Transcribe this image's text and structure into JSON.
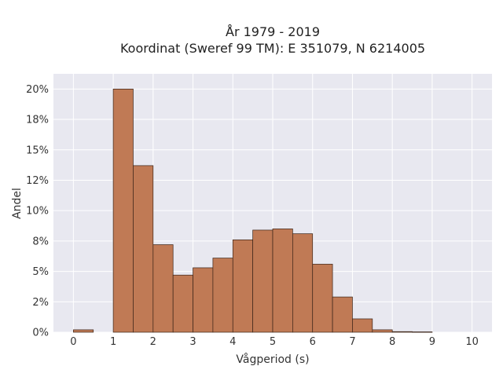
{
  "chart_data": {
    "type": "bar",
    "title_line1": "År 1979 - 2019",
    "title_line2": "Koordinat (Sweref 99 TM): E 351079, N 6214005",
    "xlabel": "Vågperiod (s)",
    "ylabel": "Andel",
    "xlim": [
      -0.5,
      10.5
    ],
    "ylim": [
      0,
      0.2125
    ],
    "bin_width": 0.5,
    "x_ticks": [
      0,
      1,
      2,
      3,
      4,
      5,
      6,
      7,
      8,
      9,
      10
    ],
    "x_tick_labels": [
      "0",
      "1",
      "2",
      "3",
      "4",
      "5",
      "6",
      "7",
      "8",
      "9",
      "10"
    ],
    "y_ticks": [
      0,
      0.025,
      0.05,
      0.075,
      0.1,
      0.125,
      0.15,
      0.175,
      0.2
    ],
    "y_tick_labels": [
      "0%",
      "2%",
      "5%",
      "8%",
      "10%",
      "12%",
      "15%",
      "18%",
      "20%"
    ],
    "grid": true,
    "colors": {
      "bar_fill": "#c07a55",
      "bar_stroke": "#3b2418",
      "plot_bg": "#e8e8f0",
      "grid": "#ffffff"
    },
    "bins": [
      {
        "x0": 0.0,
        "value": 0.002
      },
      {
        "x0": 0.5,
        "value": 0.0
      },
      {
        "x0": 1.0,
        "value": 0.2
      },
      {
        "x0": 1.5,
        "value": 0.137
      },
      {
        "x0": 2.0,
        "value": 0.072
      },
      {
        "x0": 2.5,
        "value": 0.047
      },
      {
        "x0": 3.0,
        "value": 0.053
      },
      {
        "x0": 3.5,
        "value": 0.061
      },
      {
        "x0": 4.0,
        "value": 0.076
      },
      {
        "x0": 4.5,
        "value": 0.084
      },
      {
        "x0": 5.0,
        "value": 0.085
      },
      {
        "x0": 5.5,
        "value": 0.081
      },
      {
        "x0": 6.0,
        "value": 0.056
      },
      {
        "x0": 6.5,
        "value": 0.029
      },
      {
        "x0": 7.0,
        "value": 0.011
      },
      {
        "x0": 7.5,
        "value": 0.002
      },
      {
        "x0": 8.0,
        "value": 0.0005
      },
      {
        "x0": 8.5,
        "value": 0.0003
      }
    ]
  }
}
